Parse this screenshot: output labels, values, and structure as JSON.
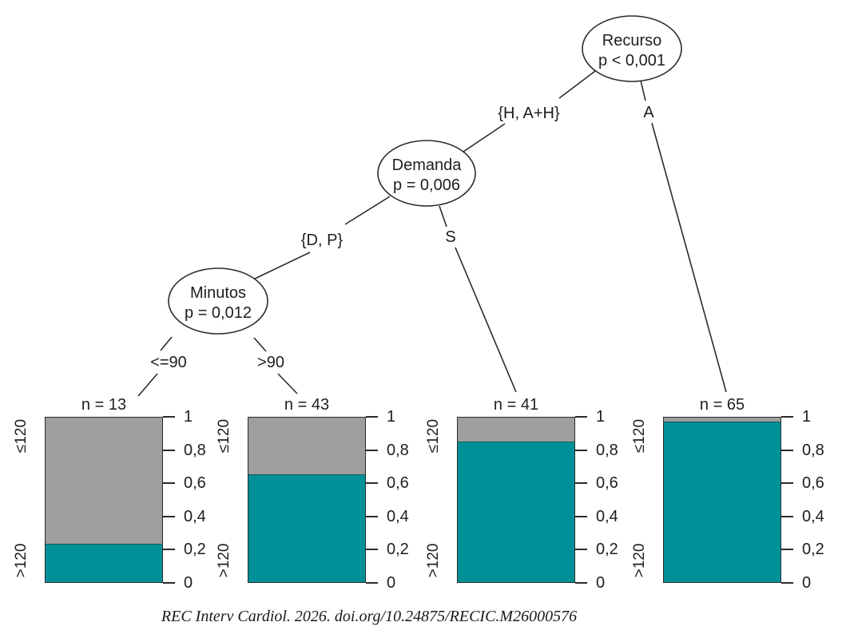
{
  "figure": {
    "caption": "REC Interv Cardiol. 2026. doi.org/10.24875/RECIC.M26000576"
  },
  "chart_data": {
    "type": "bar",
    "subtype": "conditional-inference-tree-with-stacked-bar-terminals",
    "title": "",
    "inner_nodes": [
      {
        "label": "Recurso",
        "p_value": "p < 0,001"
      },
      {
        "label": "Demanda",
        "p_value": "p = 0,006"
      },
      {
        "label": "Minutos",
        "p_value": "p = 0,012"
      }
    ],
    "edge_labels": [
      {
        "from": "Recurso",
        "label": "{H, A+H}"
      },
      {
        "from": "Recurso",
        "label": "A"
      },
      {
        "from": "Demanda",
        "label": "{D, P}"
      },
      {
        "from": "Demanda",
        "label": "S"
      },
      {
        "from": "Minutos",
        "label": "<=90"
      },
      {
        "from": "Minutos",
        "label": ">90"
      }
    ],
    "terminals": [
      {
        "n_label": "n = 13",
        "n": 13,
        "prop_bottom": 0.23
      },
      {
        "n_label": "n = 43",
        "n": 43,
        "prop_bottom": 0.65
      },
      {
        "n_label": "n = 41",
        "n": 41,
        "prop_bottom": 0.85
      },
      {
        "n_label": "n = 65",
        "n": 65,
        "prop_bottom": 0.97
      }
    ],
    "y_axis": {
      "tick_labels": [
        "0",
        "0,2",
        "0,4",
        "0,6",
        "0,8",
        "1"
      ],
      "tick_values": [
        0,
        0.2,
        0.4,
        0.6,
        0.8,
        1
      ],
      "range": [
        0,
        1
      ],
      "position": "right"
    },
    "category_top_label": "≤120",
    "category_bottom_label": ">120",
    "colors": {
      "bottom_fill": "#009198",
      "top_fill": "#9E9E9E",
      "line": "#2b2b2b"
    }
  }
}
